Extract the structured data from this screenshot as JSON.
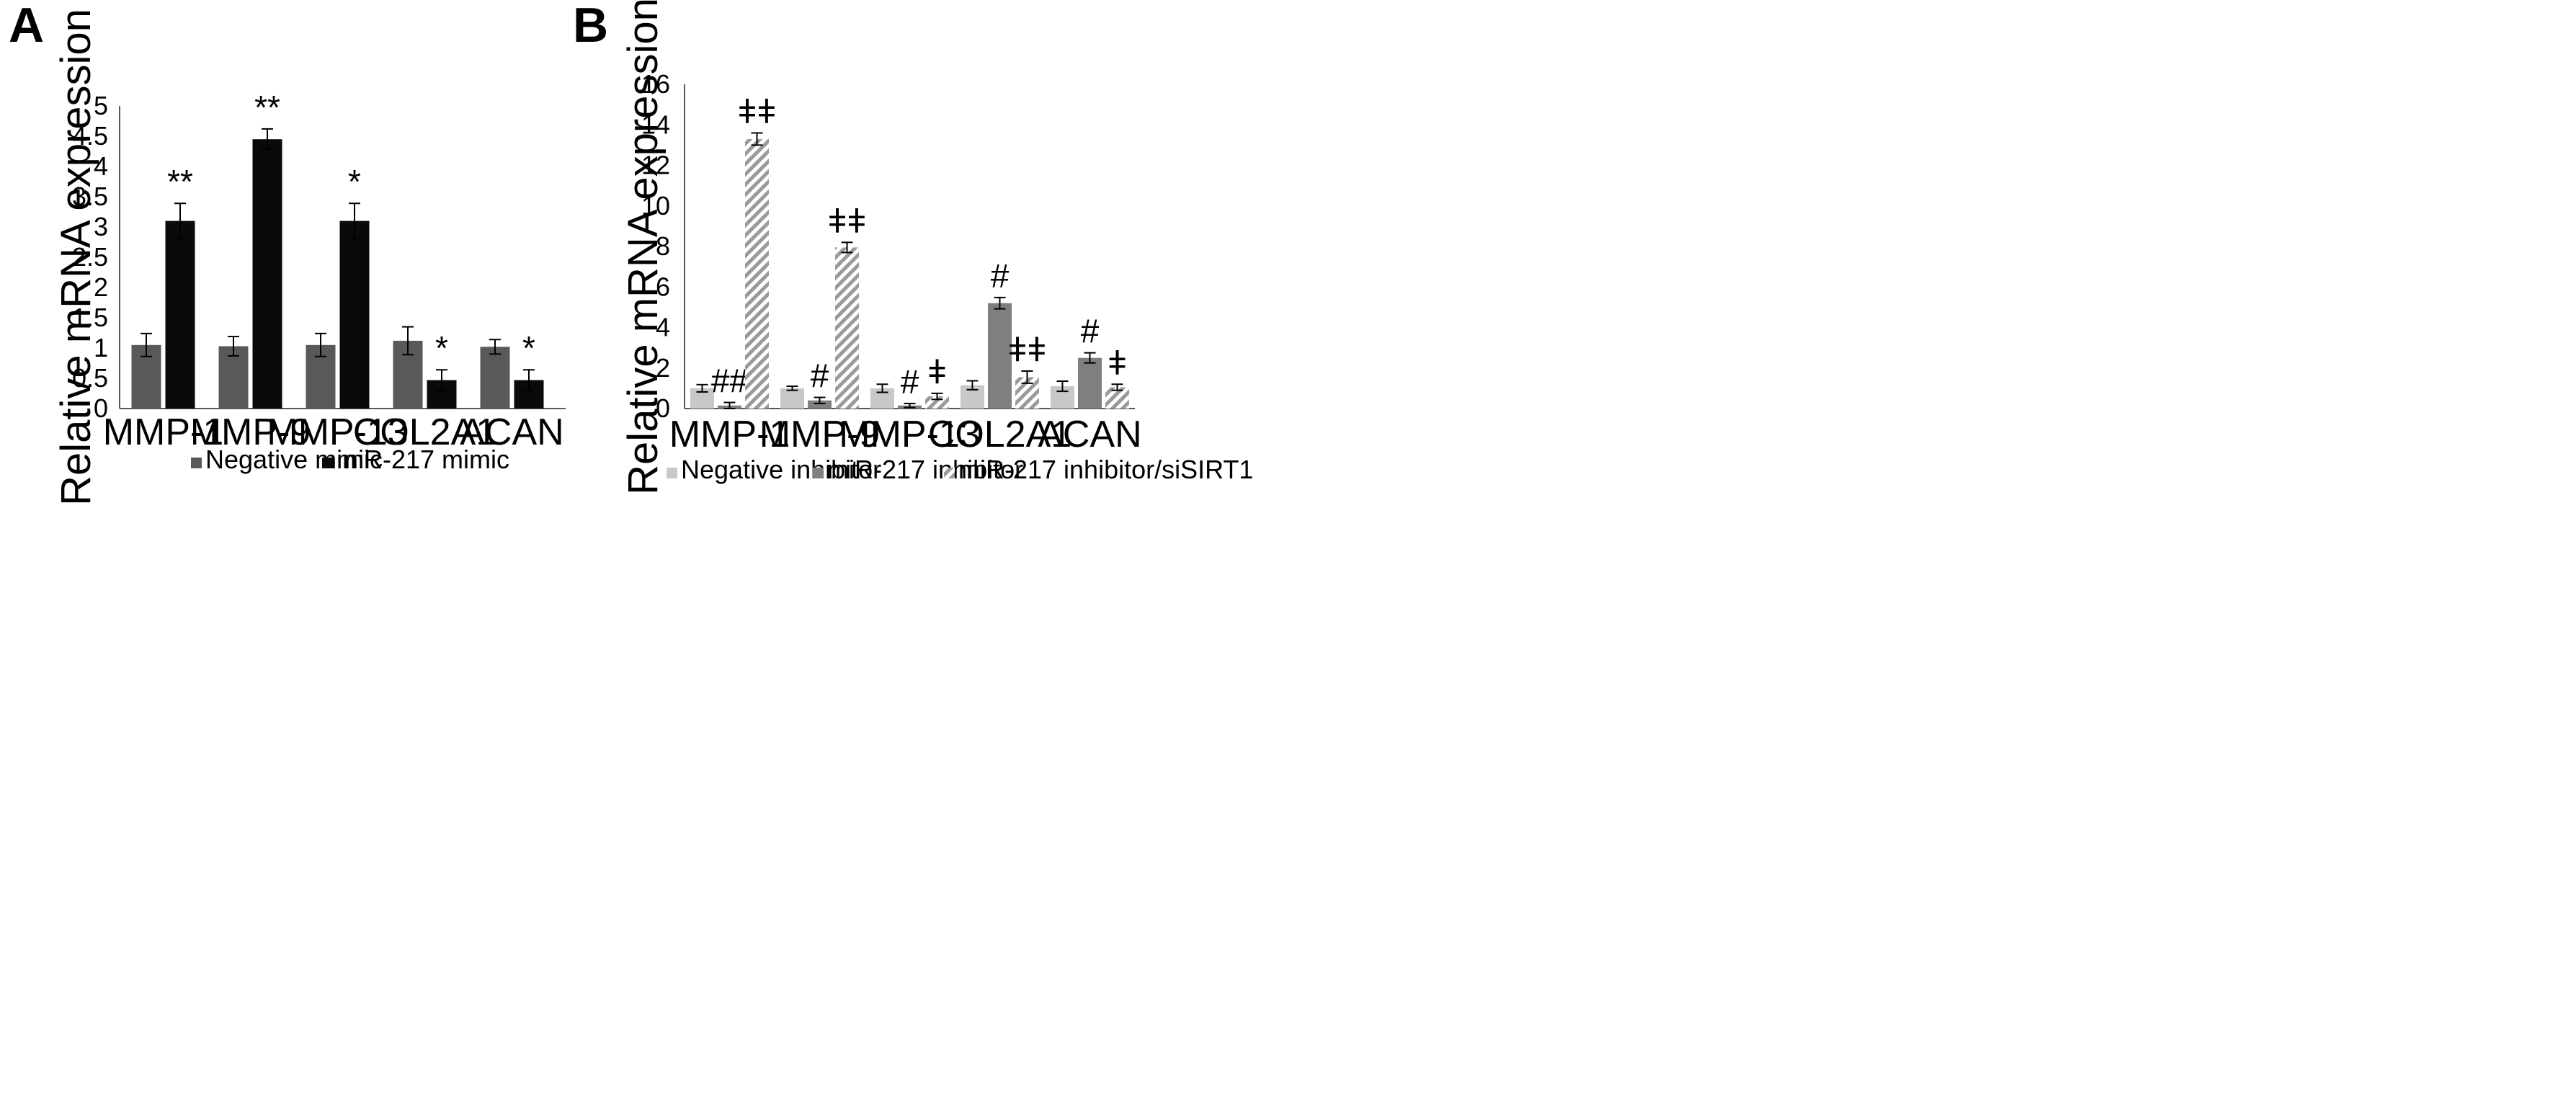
{
  "colors": {
    "negative_mimic": "#595959",
    "mir217_mimic": "#0a0a0a",
    "negative_inhibitor": "#c8c8c8",
    "mir217_inhibitor": "#7f7f7f",
    "sirt1_hatch": "#9a9a9a"
  },
  "chart_data": [
    {
      "panel": "A",
      "type": "bar",
      "title": "",
      "xlabel": "",
      "ylabel": "Relative mRNA expression",
      "ylim": [
        0,
        5
      ],
      "yticks": [
        "0",
        "0.5",
        "1",
        "1.5",
        "2",
        "2.5",
        "3",
        "3.5",
        "4",
        "4.5",
        "5"
      ],
      "categories": [
        "MMP-1",
        "MMP-9",
        "MMP-13",
        "COL2A1",
        "ACAN"
      ],
      "series": [
        {
          "name": "Negative mimic",
          "style": "solid",
          "color": "#595959",
          "values": [
            1.05,
            1.03,
            1.05,
            1.12,
            1.02
          ],
          "errors": [
            0.19,
            0.16,
            0.19,
            0.23,
            0.12
          ],
          "labels": [
            "",
            "",
            "",
            "",
            ""
          ]
        },
        {
          "name": "miR-217 mimic",
          "style": "solid",
          "color": "#0a0a0a",
          "values": [
            3.1,
            4.45,
            3.1,
            0.47,
            0.47
          ],
          "errors": [
            0.29,
            0.17,
            0.29,
            0.17,
            0.17
          ],
          "labels": [
            "**",
            "**",
            "*",
            "*",
            "*"
          ]
        }
      ],
      "legend_position": "bottom"
    },
    {
      "panel": "B",
      "type": "bar",
      "title": "",
      "xlabel": "",
      "ylabel": "Relative mRNA expression",
      "ylim": [
        0,
        16
      ],
      "yticks": [
        "0",
        "2",
        "4",
        "6",
        "8",
        "10",
        "12",
        "14",
        "16"
      ],
      "categories": [
        "MMP-1",
        "MMP-9",
        "MMP-13",
        "COL2A1",
        "ACAN"
      ],
      "series": [
        {
          "name": "Negative inhibitor",
          "style": "solid",
          "color": "#c8c8c8",
          "values": [
            1.0,
            1.0,
            1.0,
            1.15,
            1.1
          ],
          "errors": [
            0.18,
            0.1,
            0.2,
            0.22,
            0.25
          ],
          "labels": [
            "",
            "",
            "",
            "",
            ""
          ]
        },
        {
          "name": "miR-217 inhibitor",
          "style": "solid",
          "color": "#7f7f7f",
          "values": [
            0.15,
            0.4,
            0.15,
            5.2,
            2.5
          ],
          "errors": [
            0.15,
            0.15,
            0.1,
            0.28,
            0.25
          ],
          "labels": [
            "##",
            "#",
            "#",
            "#",
            "#"
          ]
        },
        {
          "name": "miR-217 inhibitor/siSIRT1",
          "style": "hatched",
          "color": "#9a9a9a",
          "values": [
            13.3,
            7.95,
            0.6,
            1.55,
            1.05
          ],
          "errors": [
            0.3,
            0.25,
            0.15,
            0.3,
            0.15
          ],
          "labels": [
            "ǂǂ",
            "ǂǂ",
            "ǂ",
            "ǂǂ",
            "ǂ"
          ]
        }
      ],
      "legend_position": "bottom"
    }
  ]
}
